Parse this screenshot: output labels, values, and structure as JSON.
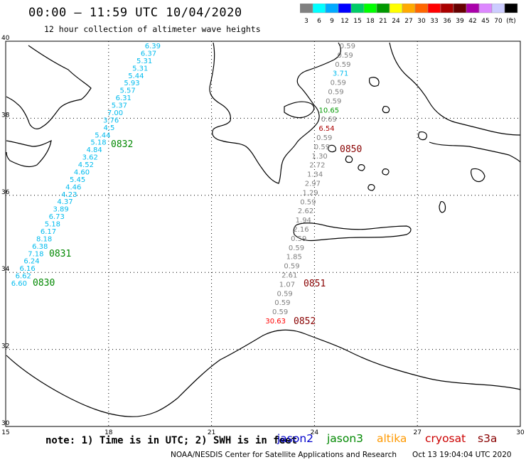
{
  "header": {
    "title": "00:00 — 11:59 UTC 10/04/2020",
    "subtitle": "12 hour collection of altimeter wave heights"
  },
  "color_scale": {
    "colors": [
      "#808080",
      "#00ffff",
      "#00aaff",
      "#0000ff",
      "#00cc66",
      "#00ff00",
      "#009900",
      "#ffff00",
      "#ffaa00",
      "#ff6600",
      "#ff0000",
      "#aa0000",
      "#660000",
      "#aa00aa",
      "#dd88ff",
      "#ccccff",
      "#000000"
    ],
    "labels": [
      "3",
      "6",
      "9",
      "12",
      "15",
      "18",
      "21",
      "24",
      "27",
      "30",
      "33",
      "36",
      "39",
      "42",
      "45",
      "70",
      "(ft)"
    ]
  },
  "map": {
    "lon_labels": [
      "15",
      "18",
      "21",
      "24",
      "27",
      "30"
    ],
    "lat_labels": [
      "40",
      "38",
      "36",
      "34",
      "32",
      "30"
    ],
    "lon_values": [
      15,
      18,
      21,
      24,
      27,
      30
    ],
    "lat_values": [
      40,
      38,
      36,
      34,
      32,
      30
    ]
  },
  "tracks": {
    "west": {
      "color": "#00bbee",
      "values": [
        "6.39",
        "6.37",
        "5.31",
        "5.31",
        "5.44",
        "5.93",
        "5.57",
        "6.31",
        "5.37",
        "7.00",
        "3.76",
        "4.5",
        "5.44",
        "5.18",
        "4.84",
        "3.62",
        "4.52",
        "4.60",
        "5.45",
        "4.46",
        "4.23",
        "4.37",
        "3.89",
        "6.73",
        "5.18",
        "6.17",
        "8.18",
        "6.38",
        "7.18",
        "6.24",
        "6.16",
        "6.62",
        "6.60"
      ],
      "time_labels": [
        "0832",
        "0831",
        "0830"
      ],
      "time_color": "#008800"
    },
    "east": {
      "default_color": "#808080",
      "values": [
        "0.59",
        "0.59",
        "0.59",
        "3.71",
        "0.59",
        "0.59",
        "0.59",
        "10.65",
        "0.69",
        "6.54",
        "0.59",
        "0.59",
        "1.30",
        "2.72",
        "1.34",
        "2.97",
        "1.29",
        "0.59",
        "2.62",
        "1.94",
        "2.16",
        "0.59",
        "0.59",
        "1.85",
        "0.59",
        "2.61",
        "1.07",
        "0.59",
        "0.59",
        "0.59",
        "30.63"
      ],
      "special_colors": {
        "3.71": "#00bbee",
        "10.65": "#009900",
        "6.54": "#aa0000",
        "30.63": "#ff0000"
      },
      "time_labels": [
        "0850",
        "0851",
        "0852"
      ],
      "time_color": "#880000"
    }
  },
  "footer": {
    "note": "note: 1) Time is in UTC; 2) SWH is in feet",
    "satellites": [
      {
        "name": "jason2",
        "color": "#0000cc"
      },
      {
        "name": "jason3",
        "color": "#008800"
      },
      {
        "name": "altika",
        "color": "#ff9900"
      },
      {
        "name": "cryosat",
        "color": "#cc0000"
      },
      {
        "name": "s3a",
        "color": "#880000"
      }
    ],
    "credit": "NOAA/NESDIS Center for Satellite Applications and Research",
    "stamp": "Oct 13 19:04:04 UTC 2020"
  }
}
